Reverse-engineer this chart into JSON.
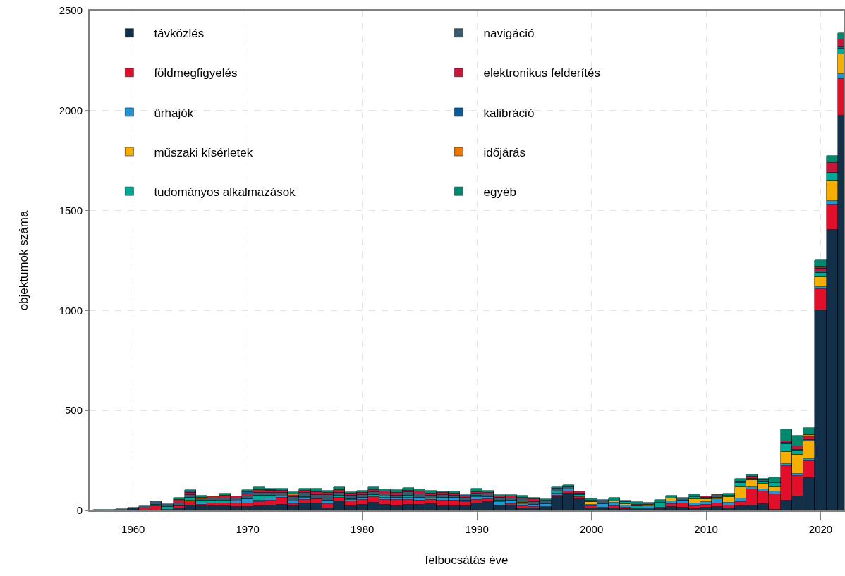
{
  "chart_data": {
    "type": "bar",
    "stacked": true,
    "xlabel": "felbocsátás éve",
    "ylabel": "objektumok száma",
    "x": [
      1957,
      1958,
      1959,
      1960,
      1961,
      1962,
      1963,
      1964,
      1965,
      1966,
      1967,
      1968,
      1969,
      1970,
      1971,
      1972,
      1973,
      1974,
      1975,
      1976,
      1977,
      1978,
      1979,
      1980,
      1981,
      1982,
      1983,
      1984,
      1985,
      1986,
      1987,
      1988,
      1989,
      1990,
      1991,
      1992,
      1993,
      1994,
      1995,
      1996,
      1997,
      1998,
      1999,
      2000,
      2001,
      2002,
      2003,
      2004,
      2005,
      2006,
      2007,
      2008,
      2009,
      2010,
      2011,
      2012,
      2013,
      2014,
      2015,
      2016,
      2017,
      2018,
      2019,
      2020,
      2021,
      2022
    ],
    "xlim": [
      1956.2,
      2022
    ],
    "xticks": [
      1960,
      1970,
      1980,
      1990,
      2000,
      2010,
      2020
    ],
    "ylim": [
      0,
      2500
    ],
    "yticks": [
      0,
      500,
      1000,
      1500,
      2000,
      2500
    ],
    "grid": true,
    "legend": "top left",
    "series": [
      {
        "name": "távközlés",
        "color": "#12304a",
        "values": [
          0,
          0,
          0,
          7,
          0,
          0,
          2,
          9,
          25,
          21,
          21,
          21,
          18,
          18,
          21,
          25,
          29,
          21,
          35,
          36,
          12,
          47,
          21,
          29,
          39,
          29,
          21,
          27,
          27,
          33,
          21,
          21,
          21,
          36,
          41,
          24,
          25,
          9,
          9,
          18,
          68,
          86,
          56,
          9,
          15,
          9,
          7,
          6,
          7,
          9,
          19,
          15,
          7,
          15,
          19,
          9,
          21,
          24,
          32,
          2,
          48,
          71,
          162,
          1000,
          1405,
          1974
        ]
      },
      {
        "name": "földmegfigyelés",
        "color": "#e30e2a",
        "values": [
          0,
          0,
          0,
          0,
          9,
          21,
          0,
          12,
          16,
          8,
          15,
          15,
          19,
          19,
          20,
          24,
          33,
          12,
          19,
          20,
          21,
          15,
          24,
          25,
          27,
          24,
          32,
          26,
          24,
          21,
          27,
          29,
          20,
          18,
          15,
          0,
          8,
          12,
          8,
          0,
          6,
          9,
          12,
          12,
          0,
          12,
          8,
          0,
          0,
          6,
          14,
          21,
          14,
          14,
          18,
          14,
          20,
          82,
          62,
          80,
          173,
          102,
          85,
          106,
          121,
          185
        ]
      },
      {
        "name": "űrhajók",
        "color": "#2196d3",
        "values": [
          0,
          0,
          0,
          0,
          0,
          0,
          0,
          0,
          0,
          7,
          0,
          0,
          10,
          18,
          8,
          12,
          9,
          12,
          8,
          0,
          12,
          0,
          9,
          8,
          0,
          12,
          9,
          12,
          14,
          0,
          12,
          12,
          9,
          14,
          12,
          18,
          15,
          12,
          12,
          15,
          12,
          11,
          0,
          8,
          18,
          18,
          9,
          0,
          14,
          0,
          14,
          14,
          15,
          13,
          18,
          15,
          18,
          12,
          12,
          14,
          12,
          12,
          12,
          12,
          21,
          23
        ]
      },
      {
        "name": "műszaki kísérletek",
        "color": "#f6ae00",
        "values": [
          0,
          0,
          0,
          0,
          0,
          0,
          0,
          0,
          10,
          0,
          0,
          0,
          0,
          0,
          0,
          0,
          0,
          0,
          0,
          0,
          0,
          0,
          0,
          0,
          0,
          0,
          0,
          0,
          0,
          0,
          0,
          0,
          0,
          0,
          0,
          0,
          0,
          6,
          0,
          0,
          0,
          0,
          0,
          12,
          0,
          8,
          8,
          0,
          8,
          0,
          12,
          0,
          20,
          14,
          7,
          29,
          59,
          32,
          27,
          21,
          59,
          94,
          86,
          49,
          100,
          100
        ]
      },
      {
        "name": "tudományos alkalmazások",
        "color": "#00a898",
        "values": [
          0,
          2,
          0,
          0,
          0,
          8,
          17,
          0,
          14,
          12,
          12,
          12,
          0,
          0,
          24,
          14,
          0,
          0,
          6,
          0,
          6,
          12,
          4,
          0,
          10,
          4,
          0,
          8,
          0,
          6,
          4,
          0,
          0,
          6,
          0,
          6,
          0,
          0,
          0,
          0,
          8,
          0,
          8,
          0,
          0,
          0,
          12,
          14,
          0,
          24,
          0,
          0,
          12,
          0,
          0,
          8,
          18,
          0,
          12,
          21,
          39,
          19,
          0,
          21,
          37,
          26
        ]
      },
      {
        "name": "navigáció",
        "color": "#3b5a6e",
        "values": [
          0,
          0,
          7,
          7,
          13,
          18,
          12,
          15,
          14,
          10,
          12,
          12,
          12,
          14,
          14,
          14,
          16,
          22,
          20,
          20,
          25,
          14,
          16,
          15,
          14,
          12,
          12,
          18,
          15,
          14,
          12,
          12,
          15,
          10,
          12,
          14,
          12,
          20,
          15,
          15,
          15,
          10,
          7,
          10,
          20,
          0,
          4,
          0,
          11,
          0,
          0,
          14,
          0,
          8,
          14,
          0,
          8,
          8,
          6,
          0,
          6,
          5,
          8,
          8,
          6,
          12
        ]
      },
      {
        "name": "elektronikus felderítés",
        "color": "#c8163a",
        "values": [
          0,
          0,
          0,
          0,
          0,
          0,
          0,
          12,
          10,
          0,
          6,
          10,
          10,
          12,
          10,
          8,
          10,
          8,
          10,
          14,
          12,
          12,
          10,
          10,
          12,
          14,
          14,
          8,
          14,
          12,
          12,
          12,
          6,
          8,
          8,
          9,
          10,
          6,
          12,
          0,
          0,
          0,
          12,
          0,
          0,
          0,
          0,
          9,
          0,
          0,
          0,
          0,
          0,
          6,
          0,
          0,
          0,
          13,
          0,
          0,
          8,
          18,
          14,
          14,
          47,
          35
        ]
      },
      {
        "name": "kalibráció",
        "color": "#0b5a9a",
        "values": [
          0,
          0,
          0,
          0,
          0,
          0,
          0,
          0,
          6,
          0,
          0,
          0,
          0,
          12,
          0,
          5,
          0,
          0,
          0,
          6,
          0,
          0,
          0,
          0,
          0,
          0,
          0,
          0,
          0,
          0,
          0,
          0,
          6,
          0,
          0,
          0,
          0,
          0,
          0,
          0,
          0,
          0,
          0,
          0,
          0,
          0,
          0,
          0,
          0,
          0,
          0,
          0,
          0,
          0,
          0,
          0,
          0,
          0,
          0,
          0,
          0,
          0,
          0,
          3,
          0,
          0
        ]
      },
      {
        "name": "időjárás",
        "color": "#f07800",
        "values": [
          0,
          0,
          0,
          0,
          0,
          0,
          0,
          6,
          0,
          6,
          6,
          5,
          0,
          0,
          5,
          0,
          0,
          5,
          0,
          0,
          0,
          4,
          0,
          0,
          0,
          0,
          0,
          0,
          0,
          0,
          0,
          0,
          0,
          0,
          0,
          0,
          0,
          0,
          0,
          0,
          0,
          0,
          0,
          0,
          0,
          0,
          0,
          0,
          0,
          0,
          0,
          0,
          0,
          0,
          4,
          0,
          0,
          0,
          0,
          0,
          0,
          0,
          12,
          3,
          0,
          0
        ]
      },
      {
        "name": "egyéb",
        "color": "#00896f",
        "values": [
          3,
          0,
          0,
          0,
          0,
          0,
          0,
          10,
          7,
          10,
          0,
          8,
          0,
          11,
          14,
          6,
          14,
          11,
          11,
          14,
          10,
          12,
          8,
          10,
          13,
          11,
          15,
          14,
          12,
          12,
          6,
          8,
          0,
          18,
          9,
          8,
          7,
          8,
          6,
          9,
          8,
          10,
          0,
          9,
          0,
          15,
          0,
          13,
          0,
          14,
          15,
          0,
          12,
          0,
          0,
          10,
          13,
          9,
          8,
          27,
          59,
          53,
          33,
          35,
          35,
          33
        ]
      }
    ]
  }
}
